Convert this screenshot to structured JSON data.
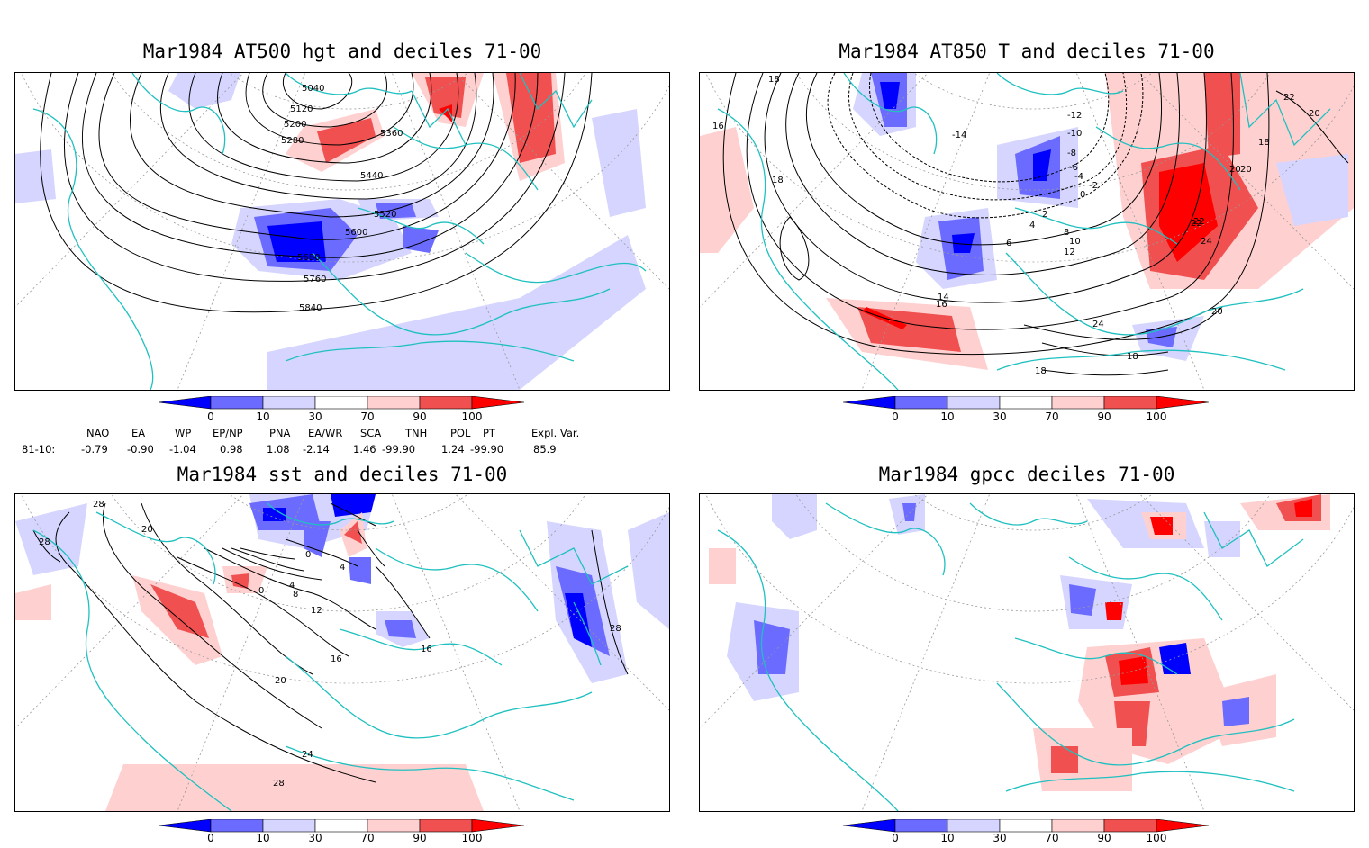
{
  "panels": [
    {
      "title": "Mar1984 AT500 hgt and deciles 71-00",
      "contour_labels": [
        "5040",
        "5120",
        "5200",
        "5280",
        "5360",
        "5440",
        "5520",
        "5600",
        "5680",
        "5760",
        "5840"
      ]
    },
    {
      "title": "Mar1984 AT850 T and deciles 71-00",
      "contour_labels": [
        "18",
        "16",
        "18",
        "22",
        "20",
        "18",
        "20",
        "22",
        "24",
        "14",
        "16",
        "12",
        "10",
        "8",
        "6",
        "4",
        "2",
        "0",
        "-2",
        "-4",
        "-6",
        "-8",
        "-10",
        "-12",
        "-14",
        "22",
        "20",
        "24",
        "20",
        "18",
        "18"
      ]
    },
    {
      "title": "Mar1984 sst and deciles 71-00",
      "contour_labels": [
        "28",
        "28",
        "20",
        "0",
        "4",
        "8",
        "12",
        "16",
        "20",
        "24",
        "28",
        "0",
        "4",
        "16",
        "28"
      ]
    },
    {
      "title": "Mar1984 gpcc deciles 71-00",
      "contour_labels": []
    }
  ],
  "colorbar": {
    "labels": [
      "0",
      "10",
      "30",
      "70",
      "90",
      "100"
    ],
    "colors": [
      "#0000ff",
      "#6b6bff",
      "#d5d5ff",
      "#ffffff",
      "#ffd0d0",
      "#f05050",
      "#ff0000"
    ]
  },
  "indices": {
    "headers": [
      "NAO",
      "EA",
      "WP",
      "EP/NP",
      "PNA",
      "EA/WR",
      "SCA",
      "TNH",
      "POL",
      "PT",
      "Expl. Var."
    ],
    "row_label": "81-10:",
    "values": [
      "-0.79",
      "-0.90",
      "-1.04",
      "0.98",
      "1.08",
      "-2.14",
      "1.46",
      "-99.90",
      "1.24",
      "-99.90",
      "85.9"
    ]
  },
  "colors": {
    "coast": "#20c0c0",
    "strong_neg": "#0000ff",
    "mid_neg": "#6b6bff",
    "weak_neg": "#d5d5ff",
    "weak_pos": "#ffd0d0",
    "mid_pos": "#f05050",
    "strong_pos": "#ff0000"
  }
}
